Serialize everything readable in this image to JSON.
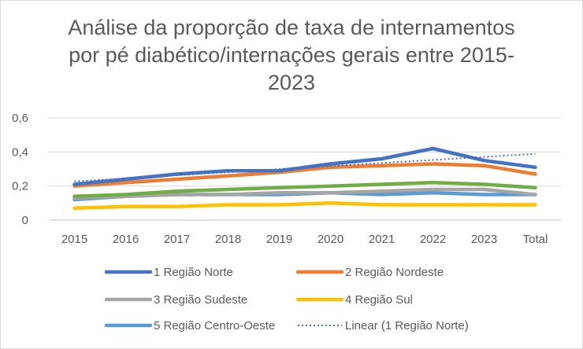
{
  "chart_data": {
    "type": "line",
    "title_lines": [
      "Análise da proporção de taxa de internamentos",
      "por pé diabético/internações gerais entre 2015-",
      "2023"
    ],
    "categories": [
      "2015",
      "2016",
      "2017",
      "2018",
      "2019",
      "2020",
      "2021",
      "2022",
      "2023",
      "Total"
    ],
    "ylim": [
      0,
      0.6
    ],
    "yticks": [
      "0",
      "0,2",
      "0,4",
      "0,6"
    ],
    "ytick_values": [
      0,
      0.2,
      0.4,
      0.6
    ],
    "grid": true,
    "legend_position": "bottom",
    "series": [
      {
        "name": "1 Região Norte",
        "color": "#4472c4",
        "style": "solid",
        "values": [
          0.21,
          0.24,
          0.27,
          0.29,
          0.29,
          0.33,
          0.36,
          0.42,
          0.35,
          0.31
        ]
      },
      {
        "name": "2 Região Nordeste",
        "color": "#ed7d31",
        "style": "solid",
        "values": [
          0.2,
          0.22,
          0.24,
          0.26,
          0.28,
          0.31,
          0.32,
          0.33,
          0.32,
          0.27
        ]
      },
      {
        "name": "3 Região Sudeste",
        "color": "#a5a5a5",
        "style": "solid",
        "values": [
          0.13,
          0.14,
          0.15,
          0.15,
          0.16,
          0.16,
          0.17,
          0.18,
          0.18,
          0.15
        ]
      },
      {
        "name": "4 Região Sul",
        "color": "#ffc000",
        "style": "solid",
        "values": [
          0.07,
          0.08,
          0.08,
          0.09,
          0.09,
          0.1,
          0.09,
          0.09,
          0.09,
          0.09
        ]
      },
      {
        "name": "5 Região Centro-Oeste",
        "color": "#5b9bd5",
        "style": "solid",
        "values": [
          0.12,
          0.14,
          0.15,
          0.15,
          0.15,
          0.16,
          0.15,
          0.16,
          0.15,
          0.15
        ]
      },
      {
        "name": "",
        "color": "#70ad47",
        "style": "solid",
        "values": [
          0.14,
          0.15,
          0.17,
          0.18,
          0.19,
          0.2,
          0.21,
          0.22,
          0.21,
          0.19
        ]
      },
      {
        "name": "Linear (1 Região Norte)",
        "color": "#4472c4",
        "style": "dotted",
        "values": [
          0.227,
          0.245,
          0.263,
          0.281,
          0.299,
          0.317,
          0.335,
          0.353,
          0.371,
          0.389
        ]
      }
    ]
  }
}
